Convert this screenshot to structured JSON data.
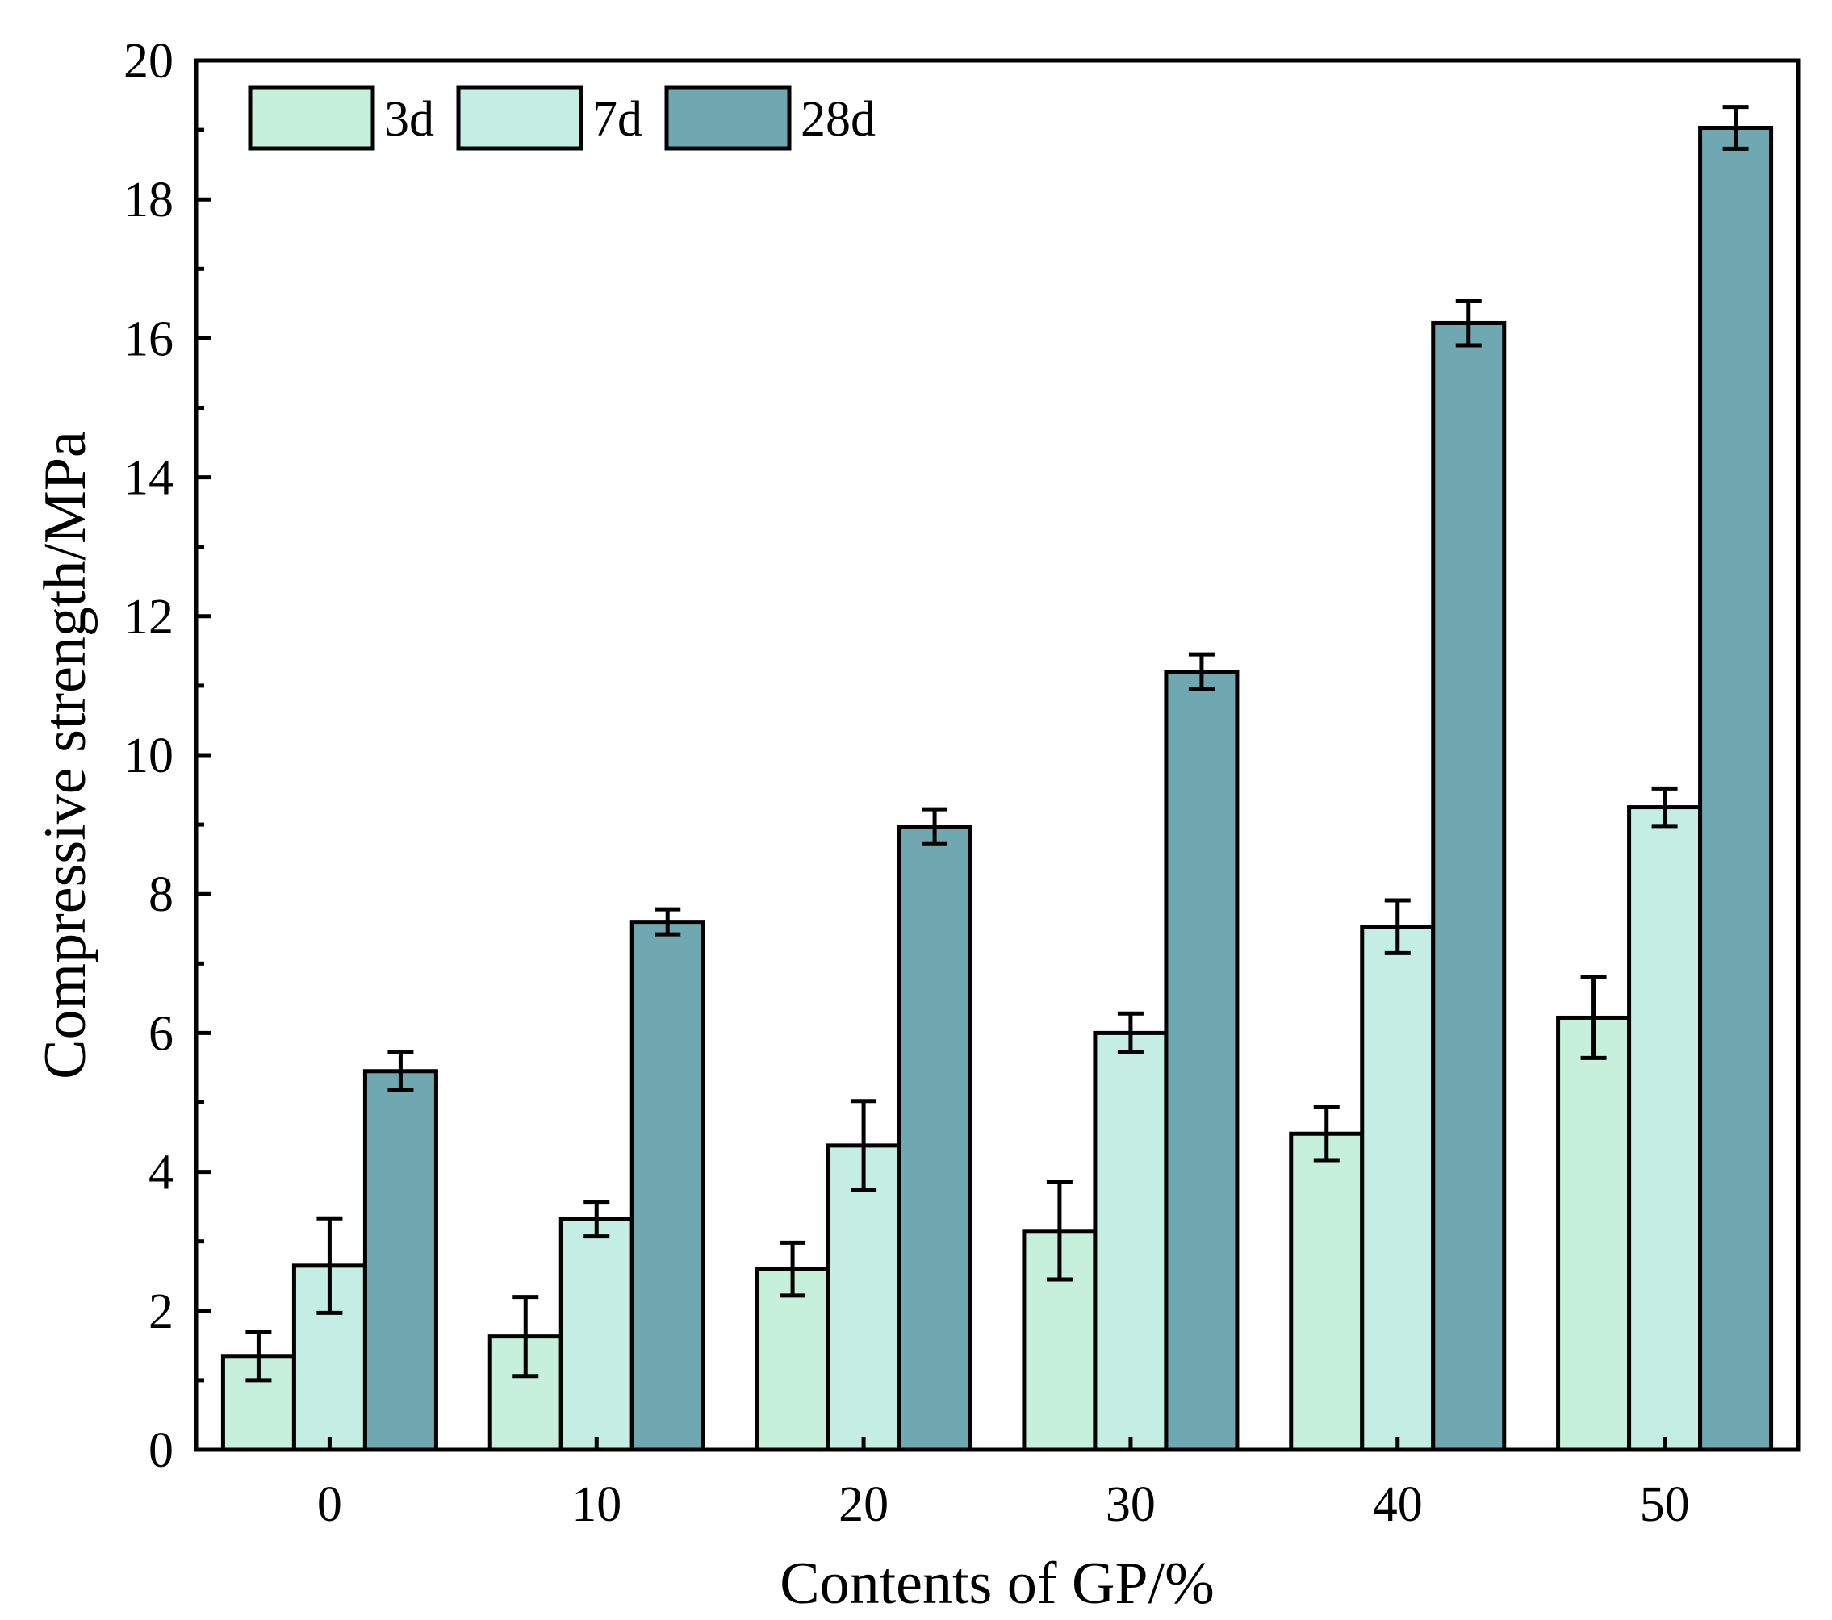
{
  "chart_data": {
    "type": "bar",
    "title": "",
    "xlabel": "Contents of GP/%",
    "ylabel": "Compressive strength/MPa",
    "categories": [
      "0",
      "10",
      "20",
      "30",
      "40",
      "50"
    ],
    "series": [
      {
        "name": "3d",
        "color": "#c6f0dc",
        "values": [
          1.35,
          1.63,
          2.6,
          3.15,
          4.55,
          6.22
        ],
        "errors": [
          0.35,
          0.57,
          0.38,
          0.7,
          0.38,
          0.58
        ]
      },
      {
        "name": "7d",
        "color": "#c4ede4",
        "values": [
          2.65,
          3.32,
          4.38,
          6.0,
          7.53,
          9.25
        ],
        "errors": [
          0.68,
          0.25,
          0.64,
          0.28,
          0.38,
          0.27
        ]
      },
      {
        "name": "28d",
        "color": "#6fa8b0",
        "values": [
          5.45,
          7.6,
          8.97,
          11.2,
          16.22,
          19.03
        ],
        "errors": [
          0.27,
          0.18,
          0.25,
          0.25,
          0.32,
          0.3
        ]
      }
    ],
    "ylim": [
      0,
      20
    ],
    "yticks": [
      "0",
      "2",
      "4",
      "6",
      "8",
      "10",
      "12",
      "14",
      "16",
      "18",
      "20"
    ],
    "grid": false,
    "legend_position": "top-left",
    "error_bars": true
  }
}
